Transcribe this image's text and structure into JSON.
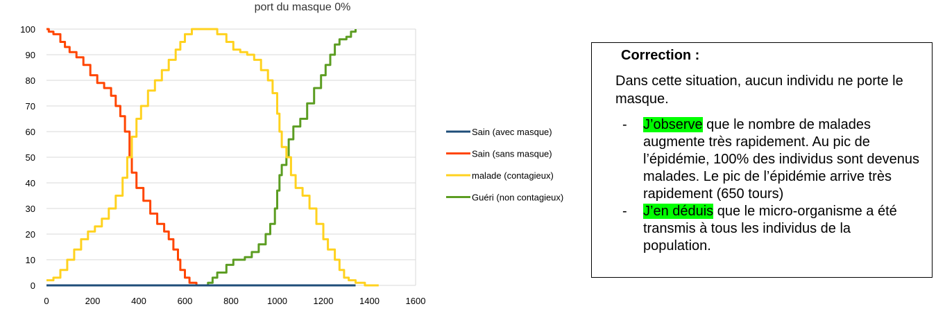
{
  "chart_data": {
    "type": "line",
    "title": "port du masque 0%",
    "xlim": [
      0,
      1600
    ],
    "ylim": [
      0,
      100
    ],
    "x_ticks": [
      0,
      200,
      400,
      600,
      800,
      1000,
      1200,
      1400,
      1600
    ],
    "y_ticks": [
      0,
      10,
      20,
      30,
      40,
      50,
      60,
      70,
      80,
      90,
      100
    ],
    "grid": "horizontal",
    "legend_position": "right",
    "series": [
      {
        "name": "Sain (avec masque)",
        "color": "#1f4e79",
        "points": [
          [
            0,
            0
          ],
          [
            1340,
            0
          ]
        ]
      },
      {
        "name": "Sain (sans masque)",
        "color": "#ff4500",
        "points": [
          [
            0,
            100
          ],
          [
            10,
            99
          ],
          [
            30,
            98
          ],
          [
            60,
            95
          ],
          [
            80,
            93
          ],
          [
            100,
            91
          ],
          [
            130,
            89
          ],
          [
            160,
            86
          ],
          [
            190,
            82
          ],
          [
            220,
            79
          ],
          [
            250,
            77
          ],
          [
            280,
            74
          ],
          [
            300,
            70
          ],
          [
            320,
            66
          ],
          [
            340,
            60
          ],
          [
            360,
            50
          ],
          [
            370,
            44
          ],
          [
            390,
            38
          ],
          [
            420,
            33
          ],
          [
            450,
            28
          ],
          [
            480,
            24
          ],
          [
            510,
            21
          ],
          [
            530,
            18
          ],
          [
            550,
            14
          ],
          [
            570,
            10
          ],
          [
            580,
            6
          ],
          [
            600,
            3
          ],
          [
            620,
            1
          ],
          [
            650,
            0
          ],
          [
            1340,
            0
          ]
        ]
      },
      {
        "name": "malade (contagieux)",
        "color": "#ffd21f",
        "points": [
          [
            0,
            2
          ],
          [
            30,
            3
          ],
          [
            60,
            6
          ],
          [
            90,
            10
          ],
          [
            120,
            14
          ],
          [
            150,
            18
          ],
          [
            180,
            21
          ],
          [
            210,
            23
          ],
          [
            240,
            26
          ],
          [
            270,
            30
          ],
          [
            300,
            35
          ],
          [
            330,
            42
          ],
          [
            350,
            50
          ],
          [
            370,
            58
          ],
          [
            390,
            65
          ],
          [
            410,
            70
          ],
          [
            440,
            76
          ],
          [
            470,
            80
          ],
          [
            500,
            84
          ],
          [
            530,
            88
          ],
          [
            560,
            92
          ],
          [
            580,
            95
          ],
          [
            600,
            98
          ],
          [
            630,
            100
          ],
          [
            700,
            100
          ],
          [
            740,
            98
          ],
          [
            780,
            95
          ],
          [
            810,
            92
          ],
          [
            840,
            91
          ],
          [
            870,
            90
          ],
          [
            900,
            88
          ],
          [
            930,
            84
          ],
          [
            960,
            80
          ],
          [
            980,
            75
          ],
          [
            1000,
            67
          ],
          [
            1010,
            60
          ],
          [
            1020,
            54
          ],
          [
            1040,
            50
          ],
          [
            1060,
            43
          ],
          [
            1080,
            38
          ],
          [
            1110,
            35
          ],
          [
            1140,
            30
          ],
          [
            1170,
            24
          ],
          [
            1200,
            18
          ],
          [
            1220,
            14
          ],
          [
            1250,
            10
          ],
          [
            1270,
            6
          ],
          [
            1290,
            3
          ],
          [
            1310,
            2
          ],
          [
            1340,
            1
          ],
          [
            1380,
            0
          ],
          [
            1440,
            0
          ]
        ]
      },
      {
        "name": "Guéri (non contagieux)",
        "color": "#5c9d22",
        "points": [
          [
            0,
            0
          ],
          [
            680,
            0
          ],
          [
            700,
            1
          ],
          [
            720,
            3
          ],
          [
            740,
            5
          ],
          [
            780,
            8
          ],
          [
            810,
            10
          ],
          [
            860,
            11
          ],
          [
            890,
            13
          ],
          [
            920,
            16
          ],
          [
            950,
            20
          ],
          [
            970,
            24
          ],
          [
            990,
            30
          ],
          [
            1000,
            37
          ],
          [
            1010,
            43
          ],
          [
            1020,
            47
          ],
          [
            1040,
            50
          ],
          [
            1050,
            57
          ],
          [
            1070,
            62
          ],
          [
            1100,
            65
          ],
          [
            1130,
            71
          ],
          [
            1160,
            77
          ],
          [
            1190,
            82
          ],
          [
            1210,
            86
          ],
          [
            1230,
            90
          ],
          [
            1250,
            94
          ],
          [
            1270,
            96
          ],
          [
            1300,
            97
          ],
          [
            1320,
            99
          ],
          [
            1340,
            100
          ]
        ]
      }
    ]
  },
  "correction": {
    "title": "Correction :",
    "intro": "Dans cette situation, aucun individu ne porte le masque.",
    "bullets": [
      {
        "dash": "-",
        "highlight": "J’observe",
        "text": " que le nombre de malades augmente très rapidement. Au pic de l’épidémie, 100% des individus sont devenus malades. Le pic de l’épidémie arrive très rapidement (650 tours)"
      },
      {
        "dash": "-",
        "highlight": "J’en déduis",
        "text": " que le micro-organisme a été transmis à tous les individus de la population."
      }
    ],
    "highlight_color": "#00ff00"
  }
}
